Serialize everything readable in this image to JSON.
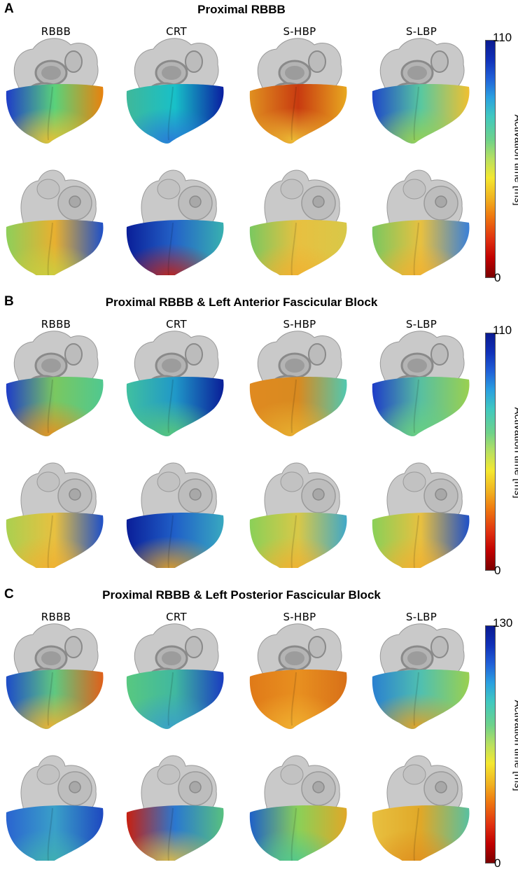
{
  "panels": [
    {
      "letter": "A",
      "title": "Proximal RBBB",
      "columns": [
        "RBBB",
        "CRT",
        "S-HBP",
        "S-LBP"
      ],
      "colorbar": {
        "min": "0",
        "max": "110",
        "label": "Activation time [ms]"
      },
      "views": {
        "anterior": [
          {
            "left": "#1e3cc8",
            "mid": "#5ad27a",
            "right": "#e8820e",
            "apex": "#f0c030"
          },
          {
            "left": "#3fb89a",
            "mid": "#18c0c8",
            "right": "#0a1ea0",
            "apex": "#2a78d8"
          },
          {
            "left": "#e09020",
            "mid": "#c83a10",
            "right": "#e8a820",
            "apex": "#f0c838"
          },
          {
            "left": "#1e46c8",
            "mid": "#58c8a0",
            "right": "#f0c030",
            "apex": "#9ad050"
          }
        ],
        "posterior": [
          {
            "left": "#8ecf5a",
            "mid": "#e8b030",
            "right": "#1e50c8",
            "apex": "#c8d040"
          },
          {
            "left": "#0a1e98",
            "mid": "#2464c8",
            "right": "#38b0b0",
            "apex": "#c82010"
          },
          {
            "left": "#7ac860",
            "mid": "#e8c040",
            "right": "#d8c848",
            "apex": "#f0b030"
          },
          {
            "left": "#7ac860",
            "mid": "#e8c040",
            "right": "#3a80d8",
            "apex": "#f0b030"
          }
        ]
      }
    },
    {
      "letter": "B",
      "title": "Proximal RBBB & Left Anterior Fascicular Block",
      "columns": [
        "RBBB",
        "CRT",
        "S-HBP",
        "S-LBP"
      ],
      "colorbar": {
        "min": "0",
        "max": "110",
        "label": "Activation time [ms]"
      },
      "views": {
        "anterior": [
          {
            "left": "#1e3cc8",
            "mid": "#7ac860",
            "right": "#50c890",
            "apex": "#e89020"
          },
          {
            "left": "#40c0a0",
            "mid": "#2098c8",
            "right": "#0a1e98",
            "apex": "#5ac878"
          },
          {
            "left": "#e08a20",
            "mid": "#d88a20",
            "right": "#50c8b0",
            "apex": "#e8b030"
          },
          {
            "left": "#1e3cc8",
            "mid": "#58c0a0",
            "right": "#9ad050",
            "apex": "#6ad080"
          }
        ],
        "posterior": [
          {
            "left": "#aad050",
            "mid": "#e8c040",
            "right": "#1e50c8",
            "apex": "#f0b030"
          },
          {
            "left": "#0a1e98",
            "mid": "#2060c8",
            "right": "#38a8c0",
            "apex": "#e8a020"
          },
          {
            "left": "#8ad058",
            "mid": "#d8c848",
            "right": "#40a8c8",
            "apex": "#f0b030"
          },
          {
            "left": "#8ad058",
            "mid": "#e8c040",
            "right": "#1e50c8",
            "apex": "#f0b030"
          }
        ]
      }
    },
    {
      "letter": "C",
      "title": "Proximal RBBB & Left Posterior Fascicular Block",
      "columns": [
        "RBBB",
        "CRT",
        "S-HBP",
        "S-LBP"
      ],
      "colorbar": {
        "min": "0",
        "max": "130",
        "label": "Activation time [ms]"
      },
      "views": {
        "anterior": [
          {
            "left": "#1e4cc8",
            "mid": "#60c880",
            "right": "#e0601a",
            "apex": "#f0b030"
          },
          {
            "left": "#58c880",
            "mid": "#40b8a0",
            "right": "#1a3cc0",
            "apex": "#3aa0c8"
          },
          {
            "left": "#e07a18",
            "mid": "#e89020",
            "right": "#d87018",
            "apex": "#f0b030"
          },
          {
            "left": "#2a80d0",
            "mid": "#50c0b0",
            "right": "#9ad050",
            "apex": "#e8a020"
          }
        ],
        "posterior": [
          {
            "left": "#2a64d0",
            "mid": "#3aa0c8",
            "right": "#1e48c0",
            "apex": "#40b0b0"
          },
          {
            "left": "#c82010",
            "mid": "#2a78d0",
            "right": "#58c080",
            "apex": "#e8c040"
          },
          {
            "left": "#1e60c8",
            "mid": "#8ad058",
            "right": "#e0a828",
            "apex": "#50c890"
          },
          {
            "left": "#e8c040",
            "mid": "#e0a828",
            "right": "#58c0a0",
            "apex": "#e09020"
          }
        ]
      }
    }
  ]
}
